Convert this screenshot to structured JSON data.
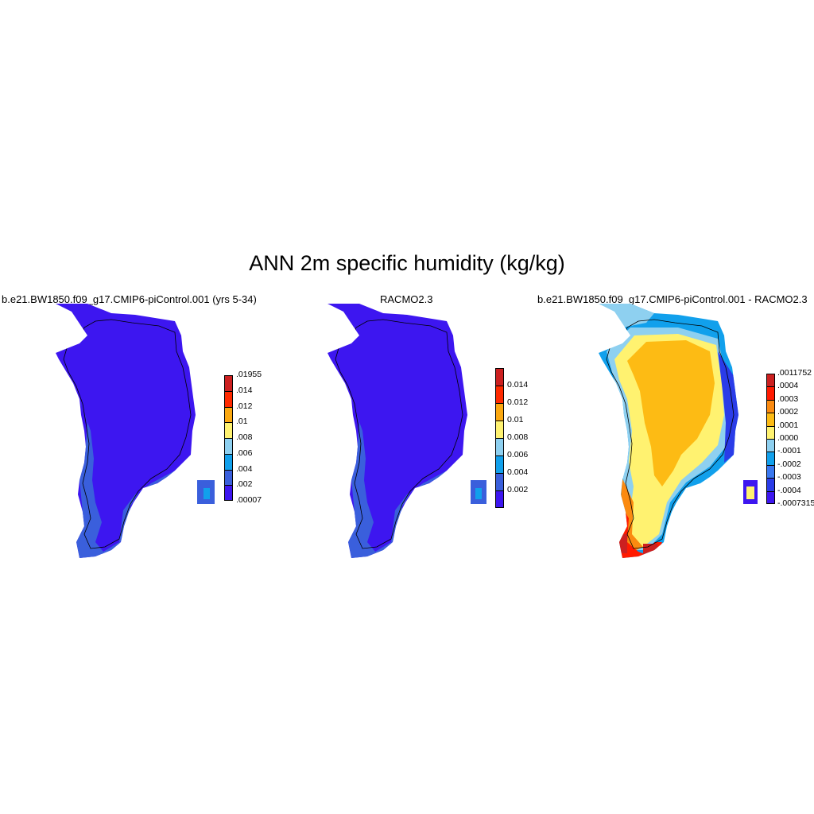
{
  "title": "ANN 2m specific humidity (kg/kg)",
  "panels": [
    {
      "id": "model",
      "title": "b.e21.BW1850.f09_g17.CMIP6-piControl.001 (yrs 5-34)",
      "colorbar": {
        "colors": [
          "#3d16f0",
          "#3a5fdc",
          "#11a0ec",
          "#8ed0f0",
          "#fff270",
          "#fba810",
          "#ff2a00",
          "#cc2020"
        ],
        "labels": [
          ".00007",
          ".002",
          ".004",
          ".006",
          ".008",
          ".01",
          ".012",
          ".014",
          ".01955"
        ]
      },
      "map": {
        "palette": [
          "#3d16f0",
          "#3a5fdc",
          "#11a0ec"
        ],
        "description_colors": "interior .002 class, coastal band .004 class"
      }
    },
    {
      "id": "obs",
      "title": "RACMO2.3",
      "colorbar": {
        "colors": [
          "#3d16f0",
          "#3a5fdc",
          "#11a0ec",
          "#8ed0f0",
          "#fff270",
          "#fba810",
          "#ff2a00",
          "#cc2020"
        ],
        "labels": [
          "0.002",
          "0.004",
          "0.006",
          "0.008",
          "0.01",
          "0.012",
          "0.014"
        ]
      },
      "map": {
        "palette": [
          "#3d16f0",
          "#3a5fdc",
          "#11a0ec"
        ]
      }
    },
    {
      "id": "diff",
      "title": "b.e21.BW1850.f09_g17.CMIP6-piControl.001 - RACMO2.3",
      "colorbar": {
        "colors": [
          "#3d16f0",
          "#2a3ce8",
          "#3a78f0",
          "#11a0ec",
          "#8ed0f0",
          "#fff270",
          "#fdbb14",
          "#fb8a10",
          "#ff1a00",
          "#cc2020"
        ],
        "labels": [
          "-.0007315",
          "-.0004",
          "-.0003",
          "-.0002",
          "-.0001",
          ".0000",
          ".0001",
          ".0002",
          ".0003",
          ".0004",
          ".0011752"
        ]
      },
      "map": {
        "palette": [
          "#3d16f0",
          "#2a3ce8",
          "#11a0ec",
          "#8ed0f0",
          "#fff270",
          "#fdbb14",
          "#ff1a00",
          "#cc2020"
        ]
      }
    }
  ]
}
